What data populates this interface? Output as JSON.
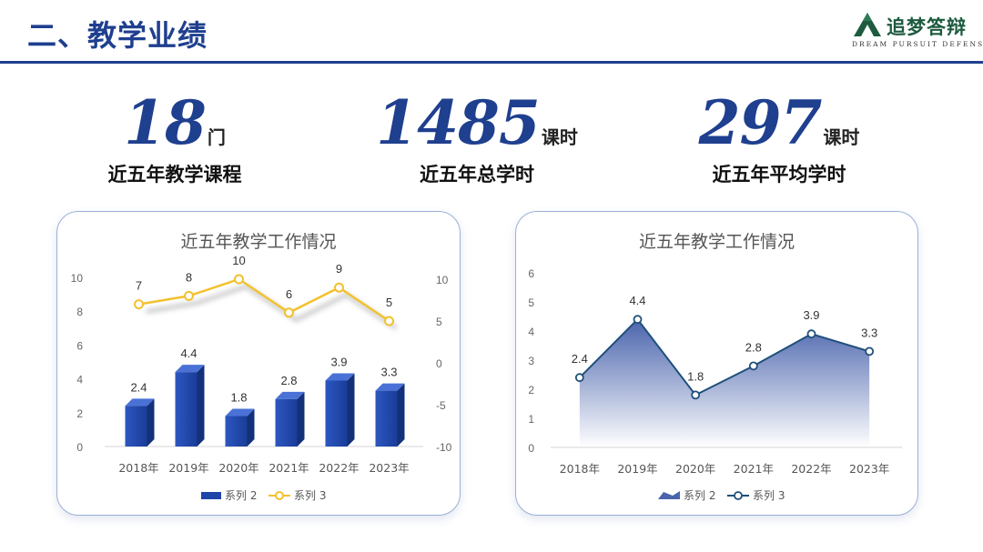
{
  "header": {
    "title": "二、教学业绩"
  },
  "logo": {
    "icon": "mountain-icon",
    "name": "追梦答辩",
    "tagline": "DREAM PURSUIT DEFENSE",
    "colors": {
      "mark": "#1d5a3f"
    }
  },
  "stats": [
    {
      "value": "18",
      "unit": "门",
      "label": "近五年教学课程"
    },
    {
      "value": "1485",
      "unit": "课时",
      "label": "近五年总学时"
    },
    {
      "value": "297",
      "unit": "课时",
      "label": "近五年平均学时"
    }
  ],
  "chart_data": [
    {
      "type": "bar",
      "title": "近五年教学工作情况",
      "categories": [
        "2018年",
        "2019年",
        "2020年",
        "2021年",
        "2022年",
        "2023年"
      ],
      "series": [
        {
          "name": "系列 2",
          "type": "bar",
          "axis": "left",
          "values": [
            2.4,
            4.4,
            1.8,
            2.8,
            3.9,
            3.3
          ],
          "color": "#1f45a8"
        },
        {
          "name": "系列 3",
          "type": "line",
          "axis": "right",
          "values": [
            7,
            8,
            10,
            6,
            9,
            5
          ],
          "color": "#f2c12e"
        }
      ],
      "ylim": [
        0,
        10
      ],
      "yticks": [
        "0",
        "2",
        "4",
        "6",
        "8",
        "10"
      ],
      "y2lim": [
        -10,
        10
      ],
      "y2ticks": [
        "-10",
        "-5",
        "0",
        "5",
        "10"
      ],
      "legend": "bottom",
      "grid": false
    },
    {
      "type": "area",
      "title": "近五年教学工作情况",
      "categories": [
        "2018年",
        "2019年",
        "2020年",
        "2021年",
        "2022年",
        "2023年"
      ],
      "series": [
        {
          "name": "系列 2",
          "type": "area",
          "values": [
            2.4,
            4.4,
            1.8,
            2.8,
            3.9,
            3.3
          ],
          "color": "#4a64ad"
        },
        {
          "name": "系列 3",
          "type": "line",
          "values": [
            2.4,
            4.4,
            1.8,
            2.8,
            3.9,
            3.3
          ],
          "color": "#1f4f7a"
        }
      ],
      "ylim": [
        0,
        6
      ],
      "yticks": [
        "0",
        "1",
        "2",
        "3",
        "4",
        "5",
        "6"
      ],
      "legend": "bottom",
      "grid": false
    }
  ]
}
